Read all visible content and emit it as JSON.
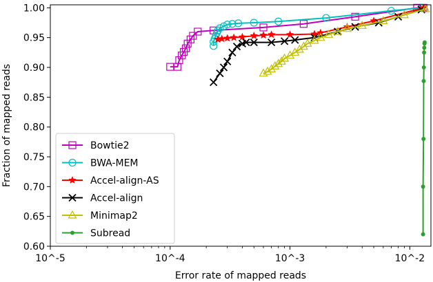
{
  "chart_data": {
    "type": "line",
    "xlabel": "Error rate of mapped reads",
    "ylabel": "Fraction of mapped reads",
    "xscale": "log",
    "xlim": [
      1e-05,
      0.015
    ],
    "ylim": [
      0.6,
      1.005
    ],
    "xticks": [
      {
        "value": 1e-05,
        "label": "10^-5"
      },
      {
        "value": 0.0001,
        "label": "10^-4"
      },
      {
        "value": 0.001,
        "label": "10^-3"
      },
      {
        "value": 0.01,
        "label": "10^-2"
      }
    ],
    "yticks": [
      {
        "value": 0.6,
        "label": "0.60"
      },
      {
        "value": 0.65,
        "label": "0.65"
      },
      {
        "value": 0.7,
        "label": "0.70"
      },
      {
        "value": 0.75,
        "label": "0.75"
      },
      {
        "value": 0.8,
        "label": "0.80"
      },
      {
        "value": 0.85,
        "label": "0.85"
      },
      {
        "value": 0.9,
        "label": "0.90"
      },
      {
        "value": 0.95,
        "label": "0.95"
      },
      {
        "value": 1.0,
        "label": "1.00"
      }
    ],
    "grid": false,
    "legend_position": "lower-left",
    "series": [
      {
        "name": "Bowtie2",
        "color": "#bf00bf",
        "marker": "square",
        "x": [
          0.0001,
          0.000115,
          0.000119,
          0.000125,
          0.00013,
          0.000135,
          0.00014,
          0.000148,
          0.000155,
          0.00017,
          0.00023,
          0.0006,
          0.0013,
          0.0035,
          0.0115,
          0.013
        ],
        "y": [
          0.901,
          0.901,
          0.912,
          0.92,
          0.926,
          0.932,
          0.94,
          0.947,
          0.953,
          0.96,
          0.962,
          0.967,
          0.973,
          0.985,
          1.0,
          1.0
        ]
      },
      {
        "name": "BWA-MEM",
        "color": "#00bfbf",
        "marker": "circle",
        "x": [
          0.00023,
          0.00023,
          0.000235,
          0.00024,
          0.000245,
          0.00025,
          0.00026,
          0.00028,
          0.0003,
          0.00033,
          0.00037,
          0.0005,
          0.0008,
          0.002,
          0.007,
          0.0125
        ],
        "y": [
          0.936,
          0.943,
          0.948,
          0.953,
          0.958,
          0.962,
          0.966,
          0.969,
          0.972,
          0.973,
          0.974,
          0.975,
          0.977,
          0.983,
          0.995,
          1.0
        ]
      },
      {
        "name": "Accel-align-AS",
        "color": "#ff0000",
        "marker": "star",
        "x": [
          0.00025,
          0.00027,
          0.0003,
          0.00034,
          0.0004,
          0.0005,
          0.0006,
          0.0007,
          0.001,
          0.0016,
          0.0018,
          0.003,
          0.005,
          0.013
        ],
        "y": [
          0.947,
          0.948,
          0.949,
          0.95,
          0.951,
          0.953,
          0.954,
          0.955,
          0.955,
          0.956,
          0.958,
          0.968,
          0.978,
          1.0
        ]
      },
      {
        "name": "Accel-align",
        "color": "#000000",
        "marker": "x",
        "x": [
          0.00023,
          0.00026,
          0.00028,
          0.0003,
          0.00033,
          0.00036,
          0.0004,
          0.00043,
          0.0005,
          0.0007,
          0.0009,
          0.0011,
          0.0016,
          0.0025,
          0.0035,
          0.0055,
          0.008,
          0.0125
        ],
        "y": [
          0.875,
          0.89,
          0.9,
          0.91,
          0.925,
          0.935,
          0.94,
          0.942,
          0.942,
          0.942,
          0.944,
          0.946,
          0.95,
          0.96,
          0.968,
          0.975,
          0.985,
          0.997
        ]
      },
      {
        "name": "Minimap2",
        "color": "#bfbf00",
        "marker": "triangle-up",
        "x": [
          0.0006,
          0.00065,
          0.0007,
          0.00075,
          0.0008,
          0.00085,
          0.0009,
          0.001,
          0.0011,
          0.0012,
          0.0013,
          0.0014,
          0.0016,
          0.0018,
          0.0021,
          0.0025,
          0.003,
          0.004,
          0.006,
          0.009,
          0.0135
        ],
        "y": [
          0.89,
          0.893,
          0.897,
          0.902,
          0.906,
          0.91,
          0.915,
          0.92,
          0.925,
          0.93,
          0.935,
          0.94,
          0.945,
          0.95,
          0.955,
          0.96,
          0.965,
          0.97,
          0.978,
          0.988,
          0.998
        ]
      },
      {
        "name": "Subread",
        "color": "#2ca02c",
        "marker": "dot",
        "x": [
          0.0129,
          0.0129,
          0.013,
          0.01305,
          0.0131,
          0.01315,
          0.0132,
          0.01325,
          0.0133
        ],
        "y": [
          0.62,
          0.7,
          0.78,
          0.877,
          0.9,
          0.925,
          0.933,
          0.94,
          0.942
        ]
      }
    ]
  }
}
